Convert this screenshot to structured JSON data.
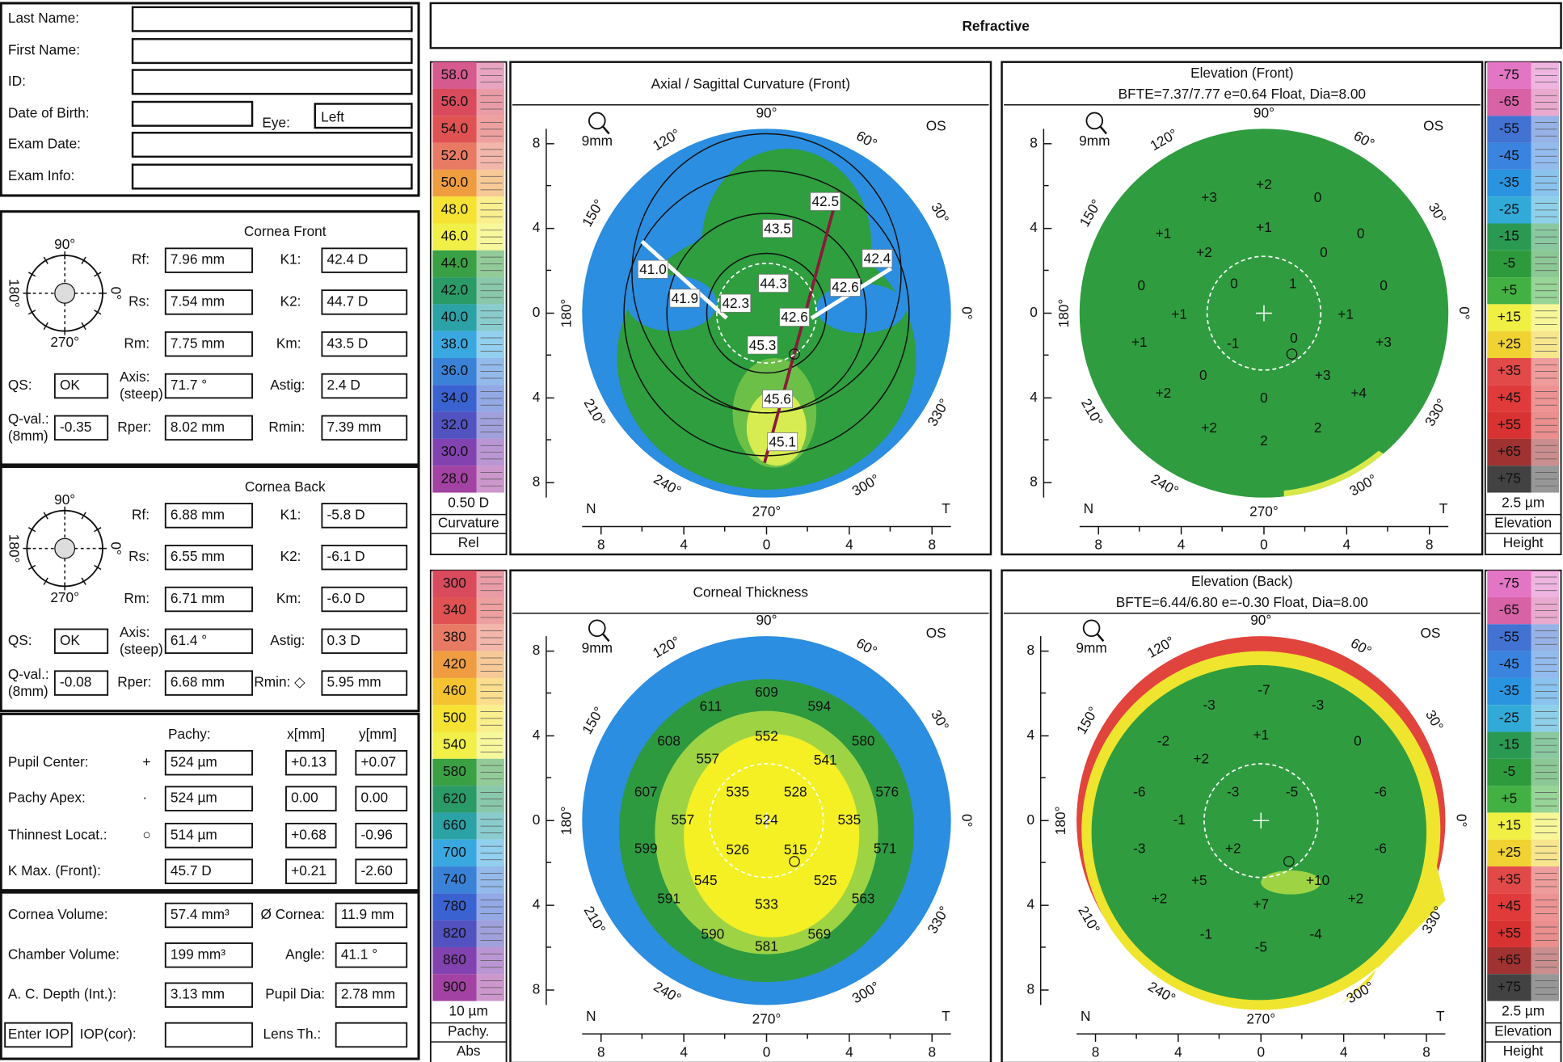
{
  "header": {
    "title": "Refractive"
  },
  "patient": {
    "labels": [
      "Last Name:",
      "First Name:",
      "ID:",
      "Date of Birth:",
      "Exam Date:",
      "Exam Info:"
    ],
    "eye_label": "Eye:",
    "eye_value": "Left"
  },
  "cornea_front": {
    "title": "Cornea Front",
    "rows": [
      [
        "Rf:",
        "7.96 mm",
        "K1:",
        "42.4 D"
      ],
      [
        "Rs:",
        "7.54 mm",
        "K2:",
        "44.7 D"
      ],
      [
        "Rm:",
        "7.75 mm",
        "Km:",
        "43.5 D"
      ],
      [
        "QS:",
        "OK",
        "Axis:",
        "(steep)",
        "71.7 °",
        "Astig:",
        "2.4 D"
      ],
      [
        "Q-val.:",
        "(8mm)",
        "-0.35",
        "Rper:",
        "8.02 mm",
        "Rmin:",
        "7.39 mm"
      ]
    ]
  },
  "cornea_back": {
    "title": "Cornea Back",
    "rows": [
      [
        "Rf:",
        "6.88 mm",
        "K1:",
        "-5.8 D"
      ],
      [
        "Rs:",
        "6.55 mm",
        "K2:",
        "-6.1 D"
      ],
      [
        "Rm:",
        "6.71 mm",
        "Km:",
        "-6.0 D"
      ],
      [
        "QS:",
        "OK",
        "Axis:",
        "(steep)",
        "61.4 °",
        "Astig:",
        "0.3 D"
      ],
      [
        "Q-val.:",
        "(8mm)",
        "-0.08",
        "Rper:",
        "6.68 mm",
        "Rmin: ◇",
        "5.95 mm"
      ]
    ]
  },
  "pachy": {
    "headers": [
      "Pachy:",
      "x[mm]",
      "y[mm]"
    ],
    "rows": [
      [
        "Pupil Center:",
        "+",
        "524 µm",
        "+0.13",
        "+0.07"
      ],
      [
        "Pachy Apex:",
        "·",
        "524 µm",
        "0.00",
        "0.00"
      ],
      [
        "Thinnest Locat.:",
        "○",
        "514 µm",
        "+0.68",
        "-0.96"
      ],
      [
        "K Max. (Front):",
        "45.7 D",
        "+0.21",
        "-2.60"
      ]
    ]
  },
  "volumes": {
    "rows": [
      [
        "Cornea Volume:",
        "57.4 mm³",
        "Ø Cornea:",
        "11.9 mm"
      ],
      [
        "Chamber Volume:",
        "199 mm³",
        "Angle:",
        "41.1 °"
      ],
      [
        "A. C. Depth (Int.):",
        "3.13 mm",
        "Pupil Dia:",
        "2.78 mm"
      ],
      [
        "Enter IOP",
        "IOP(cor):",
        "Lens Th.:"
      ]
    ]
  },
  "angle_labels": [
    "90°",
    "60°",
    "30°",
    "0°",
    "330°",
    "300°",
    "270°",
    "240°",
    "210°",
    "180°",
    "150°",
    "120°"
  ],
  "axis_ticks": [
    8,
    4,
    0,
    4,
    8
  ],
  "nasal": "N",
  "temporal": "T",
  "maps": [
    {
      "title": "Axial / Sagittal Curvature (Front)",
      "eye": "OS",
      "zoom": "9mm",
      "values": [
        "42.5",
        "43.5",
        "41.0",
        "42.4",
        "41.9",
        "42.3",
        "44.3",
        "42.6",
        "42.6",
        "45.3",
        "45.6",
        "45.1"
      ]
    },
    {
      "title": "Elevation (Front)",
      "subtitle": "BFTE=7.37/7.77 e=0.64 Float, Dia=8.00",
      "eye": "OS",
      "zoom": "9mm",
      "values": [
        "+3",
        "+2",
        "0",
        "+1",
        "+1",
        "0",
        "+2",
        "0",
        "0",
        "0",
        "1",
        "0",
        "+1",
        "+1",
        "+1",
        "-1",
        "0",
        "+3",
        "0",
        "+3",
        "+2",
        "0",
        "+4",
        "+2",
        "2",
        "2"
      ]
    },
    {
      "title": "Corneal Thickness",
      "eye": "OS",
      "zoom": "9mm",
      "values": [
        "609",
        "611",
        "594",
        "608",
        "552",
        "580",
        "557",
        "541",
        "607",
        "535",
        "528",
        "576",
        "557",
        "524",
        "535",
        "599",
        "526",
        "515",
        "571",
        "545",
        "525",
        "591",
        "533",
        "563",
        "590",
        "581",
        "569"
      ]
    },
    {
      "title": "Elevation (Back)",
      "subtitle": "BFTE=6.44/6.80 e=-0.30 Float, Dia=8.00",
      "eye": "OS",
      "zoom": "9mm",
      "values": [
        "-7",
        "-3",
        "-3",
        "-2",
        "+1",
        "0",
        "+2",
        "-6",
        "-3",
        "-5",
        "-6",
        "-1",
        "-3",
        "+2",
        "-6",
        "+5",
        "+10",
        "+2",
        "+7",
        "+2",
        "-1",
        "-4",
        "-5"
      ]
    }
  ],
  "scales": [
    {
      "labels": [
        "58.0",
        "56.0",
        "54.0",
        "52.0",
        "50.0",
        "48.0",
        "46.0",
        "44.0",
        "42.0",
        "40.0",
        "38.0",
        "36.0",
        "34.0",
        "32.0",
        "30.0",
        "28.0"
      ],
      "colors": [
        "#d65a8e",
        "#d84a5c",
        "#e05252",
        "#e87a64",
        "#f09c40",
        "#f5e232",
        "#f0f048",
        "#3aa044",
        "#2a9a66",
        "#2aa2a6",
        "#3aa8e0",
        "#3a82d8",
        "#3a62d0",
        "#5252c0",
        "#8242b0",
        "#a242a2"
      ],
      "unit": "0.50 D",
      "name": "Curvature",
      "mode": "Rel"
    },
    {
      "labels": [
        "-75",
        "-65",
        "-55",
        "-45",
        "-35",
        "-25",
        "-15",
        "-5",
        "+5",
        "+15",
        "+25",
        "+35",
        "+45",
        "+55",
        "+65",
        "+75"
      ],
      "colors": [
        "#e276c4",
        "#d862a6",
        "#4272d2",
        "#3a84e0",
        "#2a94e0",
        "#32aad8",
        "#2a9a52",
        "#2e9a3e",
        "#42b042",
        "#f0f044",
        "#f0d232",
        "#e24a4a",
        "#e03a3a",
        "#d83232",
        "#a03232",
        "#424242"
      ],
      "unit": "2.5 µm",
      "name": "Elevation",
      "mode": "Height"
    },
    {
      "labels": [
        "300",
        "340",
        "380",
        "420",
        "460",
        "500",
        "540",
        "580",
        "620",
        "660",
        "700",
        "740",
        "780",
        "820",
        "860",
        "900"
      ],
      "colors": [
        "#d84a5c",
        "#e05252",
        "#e87a64",
        "#f09c40",
        "#f5c232",
        "#f5e232",
        "#f0f048",
        "#3aa044",
        "#2a9a66",
        "#2aa2a6",
        "#3aa8e0",
        "#3a82d8",
        "#3a62d0",
        "#5252c0",
        "#8242b0",
        "#a242a2"
      ],
      "unit": "10 µm",
      "name": "Pachy.",
      "mode": "Abs"
    },
    {
      "labels": [
        "-75",
        "-65",
        "-55",
        "-45",
        "-35",
        "-25",
        "-15",
        "-5",
        "+5",
        "+15",
        "+25",
        "+35",
        "+45",
        "+55",
        "+65",
        "+75"
      ],
      "colors": [
        "#e276c4",
        "#d862a6",
        "#4272d2",
        "#3a84e0",
        "#2a94e0",
        "#32aad8",
        "#2a9a52",
        "#2e9a3e",
        "#42b042",
        "#f0f044",
        "#f0d232",
        "#e24a4a",
        "#e03a3a",
        "#d83232",
        "#a03232",
        "#424242"
      ],
      "unit": "2.5 µm",
      "name": "Elevation",
      "mode": "Height"
    }
  ]
}
